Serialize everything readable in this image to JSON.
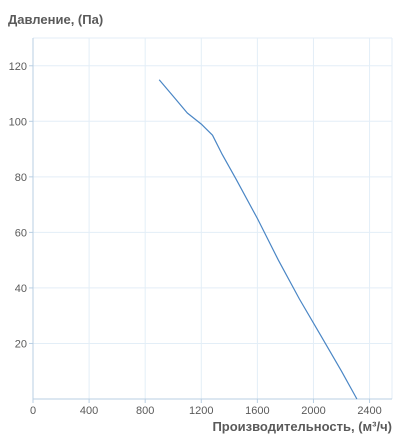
{
  "chart_data": {
    "type": "line",
    "title": "",
    "ylabel": "Давление, (Па)",
    "xlabel": "Производительность, (м³/ч)",
    "xlim": [
      0,
      2560
    ],
    "ylim": [
      0,
      130
    ],
    "x_ticks": [
      0,
      400,
      800,
      1200,
      1600,
      2000,
      2400
    ],
    "y_ticks": [
      20,
      40,
      60,
      80,
      100,
      120
    ],
    "grid": true,
    "legend": "none",
    "colors": {
      "line": "#4a86c5",
      "grid": "#e3eef7",
      "axis": "#b9cfe3",
      "text": "#5a5a5a"
    },
    "series": [
      {
        "x": [
          900,
          1000,
          1100,
          1200,
          1280,
          1350,
          1450,
          1600,
          1750,
          1900,
          2050,
          2200,
          2310
        ],
        "y": [
          115,
          109,
          103,
          99,
          95,
          88,
          79,
          65,
          50,
          36,
          23,
          10,
          0
        ]
      }
    ]
  }
}
